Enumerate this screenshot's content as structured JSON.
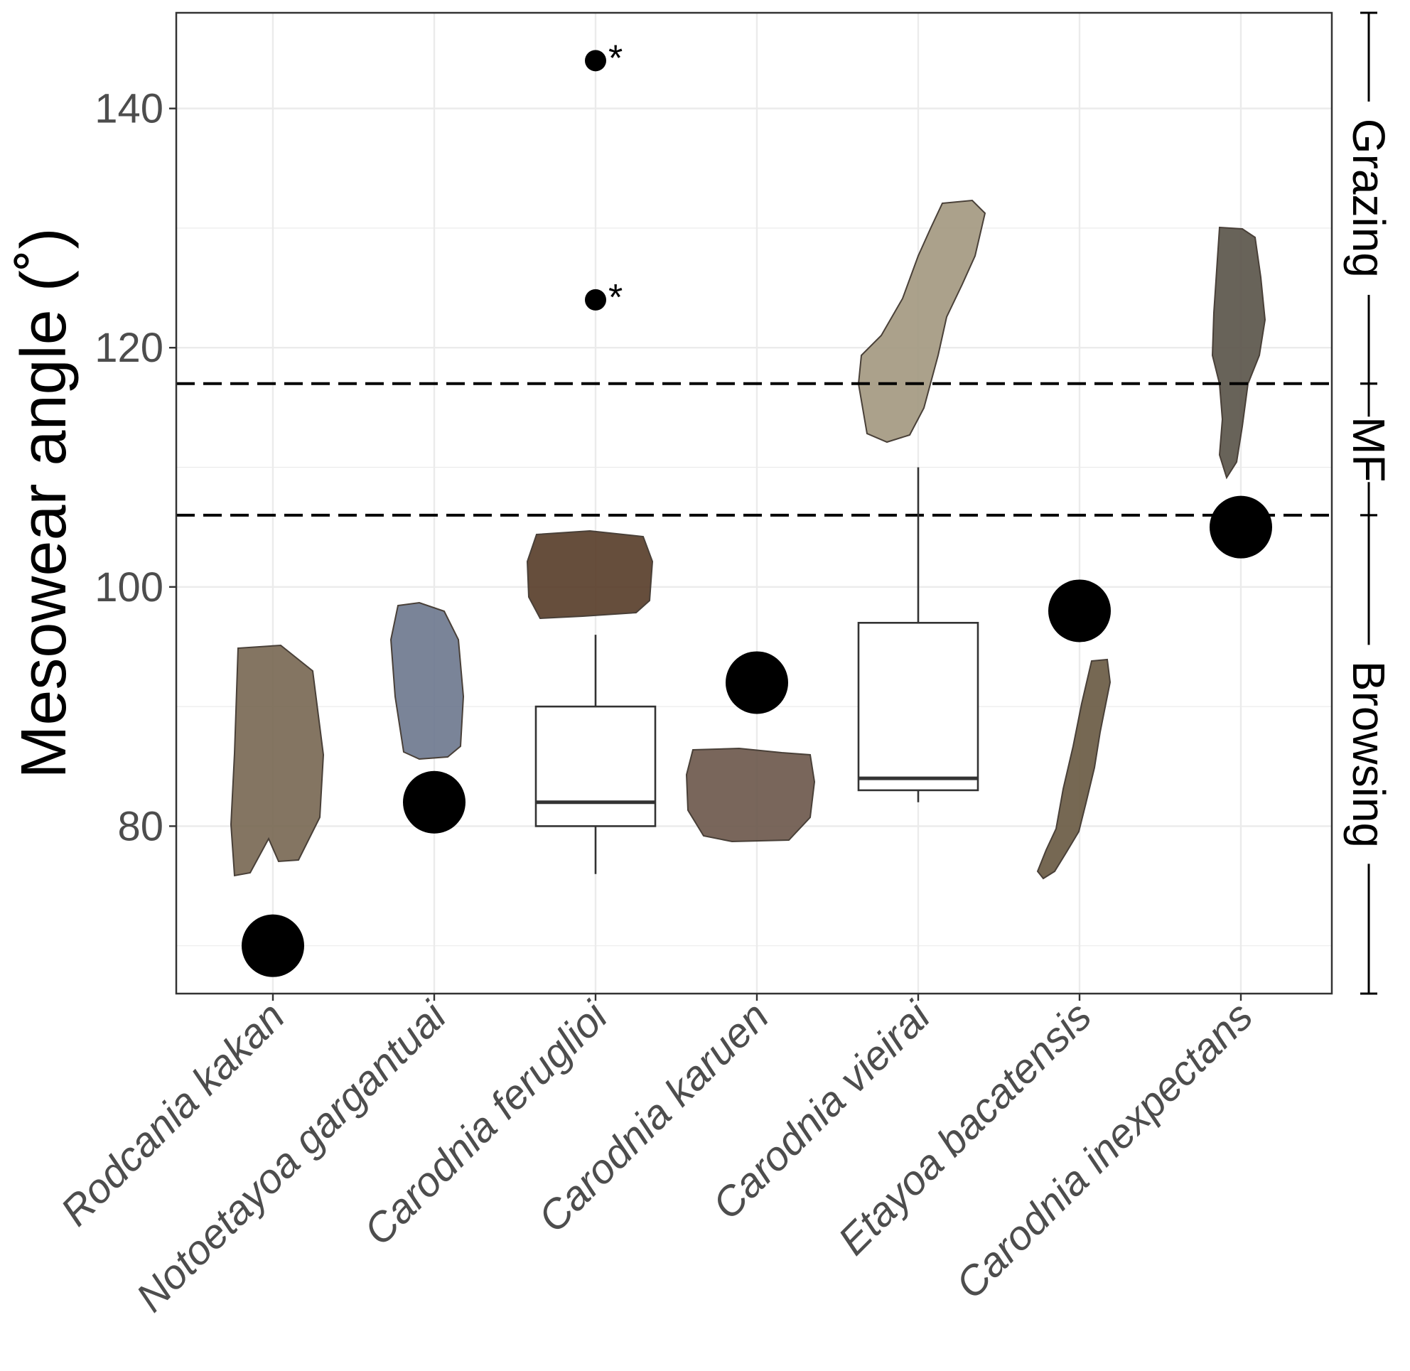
{
  "chart_data": {
    "type": "box",
    "ylabel": "Mesowear angle (˚)",
    "xlabel": "",
    "ylim": [
      66,
      148
    ],
    "yticks": [
      80,
      100,
      120,
      140
    ],
    "grid": true,
    "categories": [
      "Rodcania kakan",
      "Notoetayoa gargantuai",
      "Carodnia feruglioi",
      "Carodnia karuen",
      "Carodnia vieirai",
      "Etayoa bacatensis",
      "Carodnia inexpectans"
    ],
    "boxes": [
      {
        "category": "Carodnia feruglioi",
        "whisker_low": 76,
        "q1": 80,
        "median": 82,
        "q3": 90,
        "whisker_high": 96
      },
      {
        "category": "Carodnia vieirai",
        "whisker_low": 82,
        "q1": 83,
        "median": 84,
        "q3": 97,
        "whisker_high": 110
      }
    ],
    "single_values": [
      {
        "category": "Rodcania kakan",
        "value": 70
      },
      {
        "category": "Notoetayoa gargantuai",
        "value": 82
      },
      {
        "category": "Carodnia karuen",
        "value": 92
      },
      {
        "category": "Etayoa bacatensis",
        "value": 98
      },
      {
        "category": "Carodnia inexpectans",
        "value": 105
      }
    ],
    "outliers": [
      {
        "category": "Carodnia feruglioi",
        "value": 144,
        "marker": "*"
      },
      {
        "category": "Carodnia feruglioi",
        "value": 124,
        "marker": "*"
      }
    ],
    "thresholds": [
      106,
      117
    ],
    "diet_zones": [
      {
        "label": "Browsing",
        "from": 66,
        "to": 106
      },
      {
        "label": "MF",
        "from": 106,
        "to": 117
      },
      {
        "label": "Grazing",
        "from": 117,
        "to": 148
      }
    ],
    "specimen_images": [
      {
        "category": "Rodcania kakan",
        "icon": "tooth-fossil-photo",
        "color": "#7a6a55"
      },
      {
        "category": "Notoetayoa gargantuai",
        "icon": "tooth-fossil-photo",
        "color": "#6f7a90"
      },
      {
        "category": "Carodnia feruglioi",
        "icon": "tooth-fossil-photo",
        "color": "#5a3f2c"
      },
      {
        "category": "Carodnia karuen",
        "icon": "tooth-fossil-photo",
        "color": "#6e5a4e"
      },
      {
        "category": "Carodnia vieirai",
        "icon": "jaw-fossil-photo",
        "color": "#a49a82"
      },
      {
        "category": "Etayoa bacatensis",
        "icon": "jaw-fossil-photo",
        "color": "#6b5c45"
      },
      {
        "category": "Carodnia inexpectans",
        "icon": "jaw-fossil-photo",
        "color": "#5c564c"
      }
    ]
  }
}
